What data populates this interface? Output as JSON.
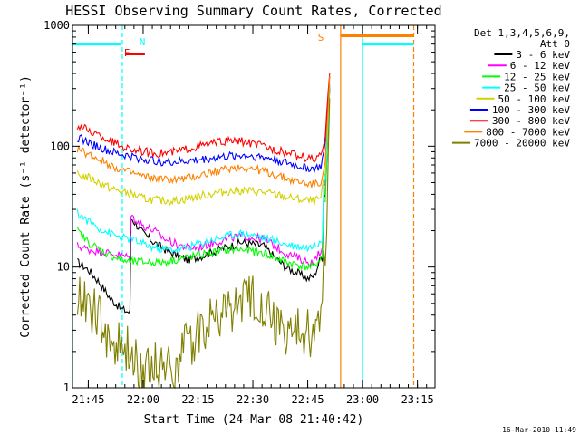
{
  "chart_data": {
    "type": "line",
    "title": "HESSI Observing Summary Count Rates, Corrected",
    "xlabel": "Start Time (24-Mar-08 21:40:42)",
    "ylabel": "Corrected Count Rate (s⁻¹ detector⁻¹)",
    "footer": "16-Mar-2010 11:49",
    "legend_placement": "top-right",
    "legend_header": [
      "Det 1,3,4,5,6,9,",
      "Att 0"
    ],
    "y_scale": "log",
    "ylim": [
      1,
      1000
    ],
    "y_ticks": [
      {
        "value": 1,
        "label": "1"
      },
      {
        "value": 10,
        "label": "10"
      },
      {
        "value": 100,
        "label": "100"
      },
      {
        "value": 1000,
        "label": "1000"
      }
    ],
    "xlim_hours": [
      21.678,
      23.33
    ],
    "x_ticks": [
      {
        "value": 21.75,
        "label": "21:45"
      },
      {
        "value": 22.0,
        "label": "22:00"
      },
      {
        "value": 22.25,
        "label": "22:15"
      },
      {
        "value": 22.5,
        "label": "22:30"
      },
      {
        "value": 22.75,
        "label": "22:45"
      },
      {
        "value": 23.0,
        "label": "23:00"
      },
      {
        "value": 23.25,
        "label": "23:15"
      }
    ],
    "series": [
      {
        "name": "3 - 6 keV",
        "color": "#000000",
        "x": [
          21.7,
          21.75,
          21.8,
          21.85,
          21.9,
          21.94,
          21.95,
          22.0,
          22.05,
          22.1,
          22.15,
          22.2,
          22.25,
          22.3,
          22.35,
          22.4,
          22.45,
          22.5,
          22.55,
          22.6,
          22.65,
          22.7,
          22.75,
          22.78,
          22.81,
          22.83,
          22.85
        ],
        "y": [
          11,
          9.5,
          7.5,
          5.5,
          4.5,
          4.2,
          25,
          19,
          16,
          14,
          12.5,
          11.5,
          12,
          13,
          14,
          15,
          16,
          15.5,
          15,
          12,
          10,
          9,
          8,
          8.5,
          12,
          40,
          300
        ]
      },
      {
        "name": "6 - 12 keV",
        "color": "#ff00ff",
        "x": [
          21.7,
          21.75,
          21.8,
          21.85,
          21.9,
          21.94,
          21.95,
          22.0,
          22.05,
          22.1,
          22.15,
          22.2,
          22.25,
          22.3,
          22.35,
          22.4,
          22.45,
          22.5,
          22.55,
          22.6,
          22.65,
          22.7,
          22.75,
          22.78,
          22.81,
          22.83,
          22.85
        ],
        "y": [
          15,
          14,
          13.5,
          13,
          12.5,
          12,
          26,
          22,
          20,
          17,
          15.5,
          14.5,
          14.5,
          15.5,
          16.5,
          17.5,
          18,
          17.5,
          17,
          15,
          13,
          12,
          11,
          11,
          14,
          45,
          320
        ]
      },
      {
        "name": "12 - 25 keV",
        "color": "#00ff00",
        "x": [
          21.7,
          21.75,
          21.8,
          21.85,
          21.9,
          21.94,
          21.95,
          22.0,
          22.05,
          22.1,
          22.15,
          22.2,
          22.25,
          22.3,
          22.35,
          22.4,
          22.45,
          22.5,
          22.55,
          22.6,
          22.65,
          22.7,
          22.75,
          22.78,
          22.81,
          22.83,
          22.85
        ],
        "y": [
          20,
          16,
          14,
          12.5,
          11.5,
          11,
          11,
          11,
          11,
          11,
          11.5,
          12,
          12.5,
          13,
          13.5,
          14,
          14,
          13.5,
          13,
          12,
          11,
          10.5,
          10,
          10,
          12,
          35,
          310
        ]
      },
      {
        "name": "25 - 50 keV",
        "color": "#00ffff",
        "x": [
          21.7,
          21.75,
          21.8,
          21.85,
          21.9,
          21.94,
          21.95,
          22.0,
          22.05,
          22.1,
          22.15,
          22.2,
          22.25,
          22.3,
          22.35,
          22.4,
          22.45,
          22.5,
          22.55,
          22.6,
          22.65,
          22.7,
          22.75,
          22.78,
          22.81,
          22.83,
          22.85
        ],
        "y": [
          28,
          24,
          21,
          19,
          17.5,
          17,
          17,
          15.5,
          14.5,
          14,
          14,
          14.5,
          15.5,
          16.5,
          17.5,
          18.5,
          19,
          18.5,
          17.5,
          16.5,
          15.5,
          15,
          14.5,
          15,
          17,
          50,
          330
        ]
      },
      {
        "name": "50 - 100 keV",
        "color": "#d2d200",
        "x": [
          21.7,
          21.75,
          21.8,
          21.85,
          21.9,
          21.95,
          22.0,
          22.05,
          22.1,
          22.15,
          22.2,
          22.25,
          22.3,
          22.35,
          22.4,
          22.45,
          22.5,
          22.55,
          22.6,
          22.65,
          22.7,
          22.75,
          22.78,
          22.81,
          22.83,
          22.85
        ],
        "y": [
          58,
          55,
          50,
          45,
          42,
          40,
          37,
          36,
          35.5,
          35.5,
          36.5,
          38.5,
          40,
          41.5,
          42.5,
          43,
          42.5,
          41.5,
          40,
          38,
          36.5,
          35.5,
          35,
          37,
          60,
          350
        ]
      },
      {
        "name": "100 - 300 keV",
        "color": "#0000ff",
        "x": [
          21.7,
          21.75,
          21.8,
          21.85,
          21.9,
          21.95,
          22.0,
          22.05,
          22.1,
          22.15,
          22.2,
          22.25,
          22.3,
          22.35,
          22.4,
          22.45,
          22.5,
          22.55,
          22.6,
          22.65,
          22.7,
          22.75,
          22.78,
          22.81,
          22.83,
          22.85
        ],
        "y": [
          118,
          108,
          98,
          90,
          85,
          82,
          78,
          76,
          74,
          74,
          75,
          77,
          79,
          81,
          83,
          84,
          83,
          81,
          78,
          73,
          69,
          66,
          65,
          68,
          100,
          380
        ]
      },
      {
        "name": "300 - 800 keV",
        "color": "#ff0000",
        "x": [
          21.7,
          21.75,
          21.8,
          21.85,
          21.9,
          21.95,
          22.0,
          22.05,
          22.1,
          22.15,
          22.2,
          22.25,
          22.3,
          22.35,
          22.4,
          22.45,
          22.5,
          22.55,
          22.6,
          22.65,
          22.7,
          22.75,
          22.78,
          22.81,
          22.83,
          22.85
        ],
        "y": [
          148,
          135,
          122,
          110,
          100,
          94,
          91,
          88,
          88,
          90,
          95,
          100,
          104,
          108,
          111,
          110,
          105,
          100,
          94,
          88,
          84,
          80,
          78,
          82,
          120,
          400
        ]
      },
      {
        "name": "800 - 7000 keV",
        "color": "#ff8000",
        "x": [
          21.7,
          21.75,
          21.8,
          21.85,
          21.9,
          21.95,
          22.0,
          22.05,
          22.1,
          22.15,
          22.2,
          22.25,
          22.3,
          22.35,
          22.4,
          22.45,
          22.5,
          22.55,
          22.6,
          22.65,
          22.7,
          22.75,
          22.78,
          22.81,
          22.83,
          22.85
        ],
        "y": [
          95,
          86,
          78,
          70,
          64,
          60,
          56,
          54,
          53,
          53,
          54,
          57,
          60,
          63,
          66,
          67,
          65,
          62,
          58,
          54,
          51,
          49,
          48,
          50,
          80,
          380
        ]
      },
      {
        "name": "7000 - 20000 keV",
        "color": "#808000",
        "x": [
          21.7,
          21.75,
          21.8,
          21.85,
          21.9,
          21.94,
          21.95,
          22.0,
          22.05,
          22.1,
          22.15,
          22.2,
          22.25,
          22.3,
          22.35,
          22.4,
          22.45,
          22.5,
          22.55,
          22.6,
          22.65,
          22.7,
          22.75,
          22.78,
          22.81,
          22.83,
          22.85
        ],
        "y": [
          6,
          5,
          3.5,
          2.5,
          2,
          2,
          1.6,
          1.5,
          1.5,
          1.6,
          1.6,
          2.2,
          3,
          3.5,
          4.2,
          4.5,
          5,
          5.5,
          5,
          3.5,
          2.8,
          2.8,
          2.8,
          3,
          3.5,
          10,
          250
        ]
      }
    ],
    "observing_flags": [
      {
        "label": "",
        "color": "#00ffff",
        "y": 700,
        "segments": [
          [
            21.678,
            21.9
          ],
          [
            23.0,
            23.233
          ]
        ]
      },
      {
        "label": "F",
        "color": "#ff0000",
        "y": 580,
        "segments": [
          [
            21.92,
            22.008
          ]
        ]
      },
      {
        "label": "N",
        "color": "#00ffff",
        "y": 0,
        "segments": []
      },
      {
        "label": "S",
        "color": "#ff8000",
        "y": 820,
        "segments": [
          [
            22.9,
            23.233
          ]
        ]
      }
    ],
    "vertical_markers": [
      {
        "x": 21.678,
        "color": "#00ffff",
        "style": "solid"
      },
      {
        "x": 21.905,
        "color": "#00ffff",
        "style": "dashed"
      },
      {
        "x": 22.9,
        "color": "#ff8000",
        "style": "solid"
      },
      {
        "x": 23.0,
        "color": "#00ffff",
        "style": "solid"
      },
      {
        "x": 23.233,
        "color": "#ff8000",
        "style": "dashed"
      }
    ]
  }
}
